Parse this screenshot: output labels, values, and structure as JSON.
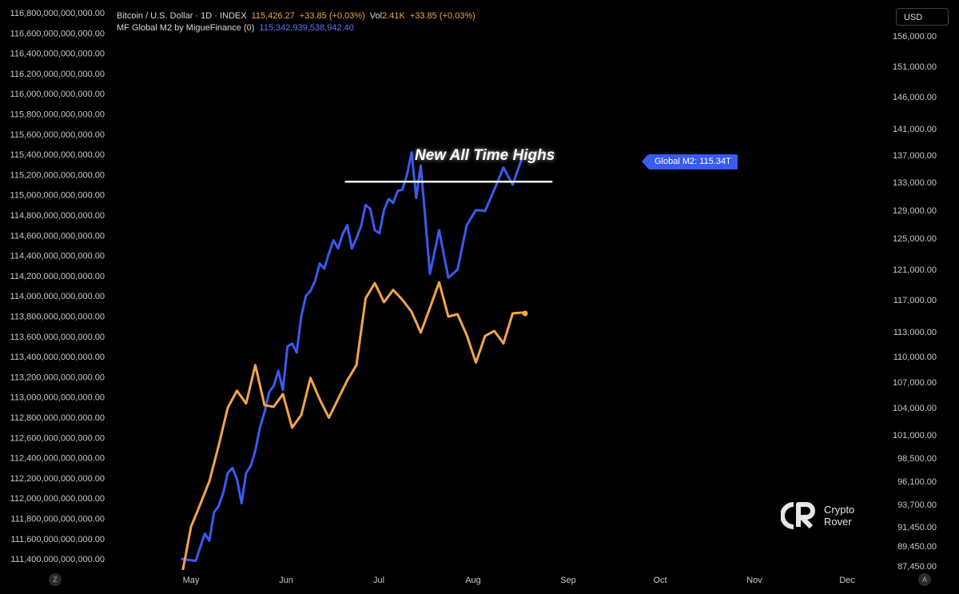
{
  "legend": {
    "line1": {
      "symbol": "Bitcoin / U.S. Dollar · 1D · INDEX",
      "price": "115,426.27",
      "change": "+33.85 (+0.03%)",
      "vol_label": "Vol",
      "vol_value": "2.41K",
      "vol_change": "+33.85 (+0.03%)"
    },
    "line2": {
      "name": "MF Global M2 by MigueFinance (0)",
      "value": "115,342,939,538,942.40"
    }
  },
  "currency_button": "USD",
  "scale_buttons": {
    "left": "Z",
    "right": "A"
  },
  "annotation": {
    "text": "New All Time Highs"
  },
  "m2_tag": "Global M2: 115.34T",
  "brand": {
    "line1": "Crypto",
    "line2": "Rover"
  },
  "colors": {
    "btc": "#f2a54b",
    "m2": "#3a5bef",
    "background": "#000000",
    "annotation_line": "#ffffff"
  },
  "chart_data": {
    "type": "line",
    "x_labels": [
      "May",
      "Jun",
      "Jul",
      "Aug",
      "Sep",
      "Oct",
      "Nov",
      "Dec"
    ],
    "left_axis": {
      "labels": [
        "116,800,000,000,000.00",
        "116,600,000,000,000.00",
        "116,400,000,000,000.00",
        "116,200,000,000,000.00",
        "116,000,000,000,000.00",
        "115,800,000,000,000.00",
        "115,600,000,000,000.00",
        "115,400,000,000,000.00",
        "115,200,000,000,000.00",
        "115,000,000,000,000.00",
        "114,800,000,000,000.00",
        "114,600,000,000,000.00",
        "114,400,000,000,000.00",
        "114,200,000,000,000.00",
        "114,000,000,000,000.00",
        "113,800,000,000,000.00",
        "113,600,000,000,000.00",
        "113,400,000,000,000.00",
        "113,200,000,000,000.00",
        "113,000,000,000,000.00",
        "112,800,000,000,000.00",
        "112,600,000,000,000.00",
        "112,400,000,000,000.00",
        "112,200,000,000,000.00",
        "112,000,000,000,000.00",
        "111,800,000,000,000.00",
        "111,600,000,000,000.00",
        "111,400,000,000,000.00"
      ],
      "top": 116800,
      "bottom": 111400
    },
    "right_axis": {
      "labels": [
        "156,000.00",
        "151,000.00",
        "146,000.00",
        "141,000.00",
        "137,000.00",
        "133,000.00",
        "129,000.00",
        "125,000.00",
        "121,000.00",
        "117,000.00",
        "113,000.00",
        "110,000.00",
        "107,000.00",
        "104,000.00",
        "101,000.00",
        "98,500.00",
        "96,100.00",
        "93,700.00",
        "91,450.00",
        "89,450.00",
        "87,450.00"
      ],
      "values": [
        156000,
        151000,
        146000,
        141000,
        137000,
        133000,
        129000,
        125000,
        121000,
        117000,
        113000,
        110000,
        107000,
        104000,
        101000,
        98500,
        96100,
        93700,
        91450,
        89450,
        87450
      ]
    },
    "series": [
      {
        "name": "MF Global M2 by MigueFinance (0)",
        "axis": "left",
        "unit": "billions",
        "x": [
          -0.4,
          0.2,
          0.6,
          0.8,
          1.0,
          1.2,
          1.4,
          1.6,
          1.8,
          2.0,
          2.2,
          2.4,
          2.6,
          2.8,
          3.0,
          3.2,
          3.4,
          3.6,
          3.8,
          4.0,
          4.2,
          4.4,
          4.6,
          4.8,
          5.0,
          5.2,
          5.4,
          5.6,
          5.8,
          6.0,
          6.2,
          6.4,
          6.6,
          6.8,
          7.0,
          7.2,
          7.4,
          7.6,
          7.8,
          8.0,
          8.2,
          8.4,
          8.6,
          8.8,
          9.0,
          9.2,
          9.4,
          9.6,
          9.8,
          10.0,
          10.4,
          10.8,
          11.2,
          11.6,
          12.0,
          12.4,
          12.8,
          13.2,
          13.6,
          14.0,
          14.4
        ],
        "values": [
          111400,
          111380,
          111650,
          111580,
          111860,
          111920,
          112050,
          112250,
          112300,
          112190,
          111950,
          112250,
          112320,
          112470,
          112700,
          112850,
          113050,
          113110,
          113260,
          113070,
          113500,
          113530,
          113440,
          113800,
          114000,
          114050,
          114150,
          114320,
          114270,
          114420,
          114550,
          114470,
          114610,
          114700,
          114470,
          114570,
          114690,
          114900,
          114860,
          114650,
          114620,
          114850,
          114960,
          114920,
          115040,
          115050,
          115200,
          115420,
          114970,
          115290,
          114220,
          114650,
          114180,
          114260,
          114700,
          114850,
          114840,
          115050,
          115270,
          115100,
          115360
        ]
      },
      {
        "name": "Bitcoin / U.S. Dollar · 1D · INDEX",
        "axis": "right",
        "x": [
          -0.4,
          0.0,
          0.4,
          0.8,
          1.2,
          1.6,
          2.0,
          2.4,
          2.8,
          3.2,
          3.6,
          4.0,
          4.4,
          4.8,
          5.2,
          5.6,
          6.0,
          6.4,
          6.8,
          7.2,
          7.6,
          8.0,
          8.4,
          8.8,
          9.2,
          9.6,
          10.0,
          10.4,
          10.8,
          11.2,
          11.6,
          12.0,
          12.4,
          12.8,
          13.2,
          13.6,
          14.0,
          14.4
        ],
        "values": [
          86500,
          91450,
          93700,
          96100,
          99800,
          104000,
          106000,
          104500,
          109000,
          104300,
          104100,
          105600,
          101800,
          103200,
          107500,
          105000,
          102900,
          105000,
          107200,
          109000,
          117200,
          119200,
          116700,
          118300,
          117000,
          115500,
          112900,
          116000,
          119300,
          114900,
          115200,
          112600,
          109300,
          112500,
          113100,
          111600,
          115300,
          115400
        ]
      }
    ],
    "annotation": {
      "text": "New All Time Highs",
      "level": 115130,
      "from_x": 6.8,
      "to_x": 15.0
    },
    "grid": false,
    "legend_placement": "top-left"
  }
}
